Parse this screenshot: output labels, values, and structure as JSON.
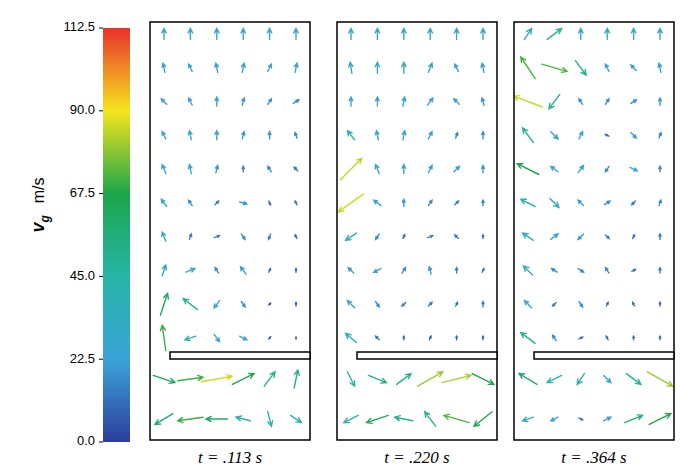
{
  "chart_data": {
    "type": "vector_field",
    "colorbar": {
      "range": [
        0,
        112.5
      ],
      "ticks": [
        {
          "value": 0,
          "label": "0.0"
        },
        22.5,
        {
          "value": 45,
          "label": "45.0"
        },
        67.5,
        {
          "value": 90,
          "label": "90.0"
        },
        112.5
      ],
      "label": {
        "symbol": "v",
        "subscript": "g",
        "unit": "m/s"
      }
    },
    "panels": [
      {
        "title": "t = .113 s",
        "u": [
          [
            0,
            0,
            0,
            0,
            0,
            0
          ],
          [
            -5,
            -10,
            -5,
            5,
            10,
            5
          ],
          [
            -15,
            -10,
            0,
            5,
            10,
            15
          ],
          [
            -10,
            -5,
            0,
            5,
            0,
            -5
          ],
          [
            -10,
            -5,
            5,
            0,
            -10,
            -10
          ],
          [
            -15,
            -10,
            10,
            20,
            5,
            -5
          ],
          [
            -10,
            5,
            15,
            10,
            -5,
            -5
          ],
          [
            10,
            25,
            -10,
            -15,
            5,
            0
          ],
          [
            20,
            -40,
            -15,
            10,
            5,
            0
          ],
          [
            -10,
            -30,
            15,
            20,
            5,
            0
          ],
          [
            60,
            70,
            85,
            60,
            30,
            10
          ],
          [
            -50,
            -70,
            -60,
            -40,
            10,
            30
          ]
        ],
        "v": [
          [
            30,
            30,
            30,
            30,
            30,
            30
          ],
          [
            25,
            20,
            25,
            25,
            20,
            25
          ],
          [
            15,
            20,
            25,
            20,
            15,
            10
          ],
          [
            20,
            25,
            25,
            20,
            20,
            15
          ],
          [
            25,
            25,
            20,
            15,
            15,
            10
          ],
          [
            20,
            15,
            10,
            -5,
            -10,
            10
          ],
          [
            25,
            15,
            5,
            -15,
            -15,
            10
          ],
          [
            30,
            10,
            15,
            20,
            10,
            10
          ],
          [
            60,
            30,
            -20,
            -15,
            5,
            10
          ],
          [
            70,
            -10,
            -20,
            -10,
            5,
            5
          ],
          [
            -20,
            10,
            15,
            30,
            40,
            50
          ],
          [
            -30,
            -10,
            0,
            10,
            -40,
            -20
          ]
        ]
      },
      {
        "title": "t = .220 s",
        "u": [
          [
            0,
            0,
            0,
            0,
            0,
            0
          ],
          [
            -5,
            0,
            0,
            10,
            -10,
            -5
          ],
          [
            0,
            0,
            5,
            15,
            -15,
            -5
          ],
          [
            -20,
            -5,
            5,
            10,
            5,
            0
          ],
          [
            60,
            -10,
            0,
            10,
            15,
            0
          ],
          [
            -70,
            -20,
            0,
            10,
            10,
            0
          ],
          [
            -30,
            -10,
            5,
            15,
            -10,
            0
          ],
          [
            -15,
            -20,
            10,
            -5,
            0,
            5
          ],
          [
            -20,
            10,
            -10,
            10,
            5,
            0
          ],
          [
            -30,
            -10,
            0,
            5,
            0,
            0
          ],
          [
            20,
            50,
            40,
            70,
            80,
            60
          ],
          [
            -40,
            -60,
            -50,
            -30,
            -70,
            -50
          ]
        ],
        "v": [
          [
            30,
            30,
            30,
            30,
            30,
            30
          ],
          [
            30,
            30,
            30,
            25,
            20,
            25
          ],
          [
            25,
            25,
            25,
            20,
            15,
            20
          ],
          [
            25,
            25,
            25,
            20,
            15,
            20
          ],
          [
            60,
            25,
            25,
            20,
            15,
            20
          ],
          [
            -50,
            15,
            20,
            15,
            10,
            15
          ],
          [
            -20,
            -15,
            10,
            5,
            10,
            10
          ],
          [
            15,
            -10,
            15,
            20,
            15,
            10
          ],
          [
            20,
            -15,
            -10,
            10,
            10,
            15
          ],
          [
            25,
            10,
            10,
            10,
            10,
            10
          ],
          [
            -40,
            -20,
            30,
            40,
            20,
            -30
          ],
          [
            -20,
            -20,
            10,
            40,
            20,
            -40
          ]
        ]
      },
      {
        "title": "t = .364 s",
        "u": [
          [
            20,
            40,
            0,
            0,
            0,
            0
          ],
          [
            -40,
            70,
            30,
            -10,
            -15,
            -5
          ],
          [
            -80,
            -30,
            -10,
            10,
            15,
            0
          ],
          [
            -30,
            20,
            10,
            -10,
            15,
            5
          ],
          [
            -60,
            -20,
            15,
            -10,
            20,
            0
          ],
          [
            -40,
            25,
            -15,
            15,
            -10,
            5
          ],
          [
            -30,
            20,
            -15,
            10,
            5,
            0
          ],
          [
            -25,
            -15,
            15,
            -10,
            10,
            0
          ],
          [
            -20,
            -10,
            10,
            5,
            -5,
            0
          ],
          [
            -40,
            -10,
            10,
            -5,
            0,
            0
          ],
          [
            -50,
            -40,
            -20,
            20,
            40,
            70
          ],
          [
            -30,
            -20,
            10,
            20,
            50,
            60
          ]
        ],
        "v": [
          [
            30,
            30,
            30,
            30,
            30,
            30
          ],
          [
            60,
            -20,
            -40,
            20,
            15,
            25
          ],
          [
            30,
            -40,
            15,
            15,
            10,
            20
          ],
          [
            40,
            -20,
            20,
            5,
            -15,
            15
          ],
          [
            30,
            15,
            20,
            -15,
            -10,
            15
          ],
          [
            20,
            -25,
            15,
            10,
            -10,
            15
          ],
          [
            20,
            15,
            -15,
            -10,
            10,
            15
          ],
          [
            25,
            10,
            -10,
            15,
            5,
            15
          ],
          [
            20,
            -10,
            -15,
            10,
            10,
            10
          ],
          [
            30,
            15,
            5,
            10,
            10,
            10
          ],
          [
            30,
            -20,
            -30,
            -20,
            -30,
            -40
          ],
          [
            -10,
            -10,
            -5,
            10,
            20,
            30
          ]
        ]
      }
    ]
  }
}
